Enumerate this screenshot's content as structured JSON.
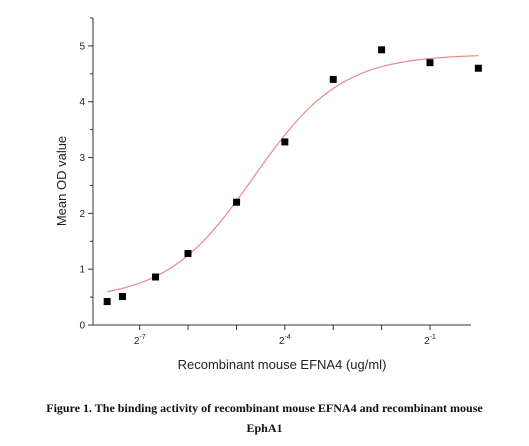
{
  "chart_data": {
    "type": "scatter",
    "xlabel": "Recombinant mouse EFNA4 (ug/ml)",
    "ylabel": "Mean OD value",
    "x_scale": "log2",
    "xlim": [
      0.004,
      0.9
    ],
    "ylim": [
      0,
      5.5
    ],
    "x_tick_labels": [
      {
        "base": "2",
        "exp": "-7",
        "value": 0.0078125
      },
      {
        "base": "2",
        "exp": "-4",
        "value": 0.0625
      },
      {
        "base": "2",
        "exp": "-1",
        "value": 0.5
      }
    ],
    "y_ticks": [
      0,
      1,
      2,
      3,
      4,
      5
    ],
    "points": [
      {
        "x": 0.0049,
        "y": 0.42
      },
      {
        "x": 0.0061,
        "y": 0.51
      },
      {
        "x": 0.0098,
        "y": 0.86
      },
      {
        "x": 0.0156,
        "y": 1.28
      },
      {
        "x": 0.0313,
        "y": 2.2
      },
      {
        "x": 0.0625,
        "y": 3.28
      },
      {
        "x": 0.125,
        "y": 4.4
      },
      {
        "x": 0.25,
        "y": 4.93
      },
      {
        "x": 0.5,
        "y": 4.7
      },
      {
        "x": 1.0,
        "y": 4.6
      }
    ],
    "fit": {
      "bottom": 0.45,
      "top": 4.85,
      "ec50": 0.04,
      "hill": 1.6
    },
    "colors": {
      "points": "#000000",
      "fit": "#e88a8a",
      "axis": "#333333"
    },
    "grid": false
  },
  "caption": {
    "line1": "Figure 1. The binding activity of recombinant mouse EFNA4 and recombinant mouse",
    "line2": "EphA1"
  }
}
